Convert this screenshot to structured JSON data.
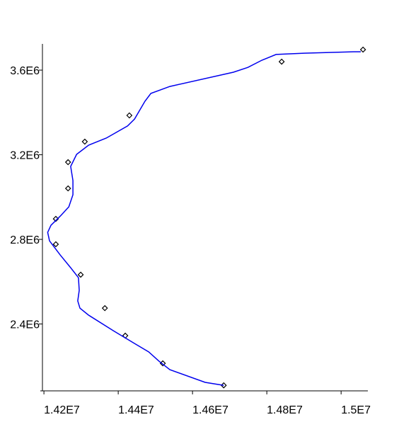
{
  "chart_data": {
    "type": "scatter-curve",
    "xlim": [
      14196000,
      15072000
    ],
    "ylim": [
      2084000,
      3724000
    ],
    "xticks": [
      {
        "value": 14200000,
        "label": "1.42E7"
      },
      {
        "value": 14400000,
        "label": "1.44E7"
      },
      {
        "value": 14600000,
        "label": "1.46E7"
      },
      {
        "value": 14800000,
        "label": "1.48E7"
      },
      {
        "value": 15000000,
        "label": "1.5E7"
      }
    ],
    "yticks": [
      {
        "value": 2400000,
        "label": "2.4E6"
      },
      {
        "value": 2800000,
        "label": "2.8E6"
      },
      {
        "value": 3200000,
        "label": "3.2E6"
      },
      {
        "value": 3600000,
        "label": "3.6E6"
      }
    ],
    "series": [
      {
        "kind": "points",
        "color": "#000000",
        "x": [
          15059000,
          14840000,
          14430000,
          14310000,
          14265000,
          14265000,
          14232000,
          14232000,
          14299000,
          14364000,
          14419000,
          14520000,
          14684000
        ],
        "values": [
          3697000,
          3640000,
          3386000,
          3262000,
          3165000,
          3041000,
          2897000,
          2777000,
          2633000,
          2475000,
          2345000,
          2214000,
          2110000
        ]
      },
      {
        "kind": "curve",
        "color": "#0000ee",
        "x": [
          14684000,
          14634000,
          14539000,
          14510000,
          14482000,
          14444000,
          14387000,
          14320000,
          14297000,
          14291000,
          14295000,
          14293000,
          14272000,
          14244000,
          14215000,
          14210000,
          14219000,
          14244000,
          14267000,
          14278000,
          14278000,
          14272000,
          14288000,
          14320000,
          14368000,
          14425000,
          14444000,
          14472000,
          14488000,
          14539000,
          14710000,
          14749000,
          14787000,
          14825000,
          14901000,
          15034000,
          15053000
        ],
        "values": [
          2110000,
          2124000,
          2184000,
          2224000,
          2268000,
          2308000,
          2368000,
          2442000,
          2475000,
          2509000,
          2559000,
          2619000,
          2666000,
          2726000,
          2793000,
          2833000,
          2867000,
          2910000,
          2954000,
          3011000,
          3078000,
          3145000,
          3202000,
          3245000,
          3279000,
          3336000,
          3369000,
          3453000,
          3490000,
          3523000,
          3590000,
          3613000,
          3647000,
          3674000,
          3680000,
          3687000,
          3687000
        ]
      }
    ]
  }
}
